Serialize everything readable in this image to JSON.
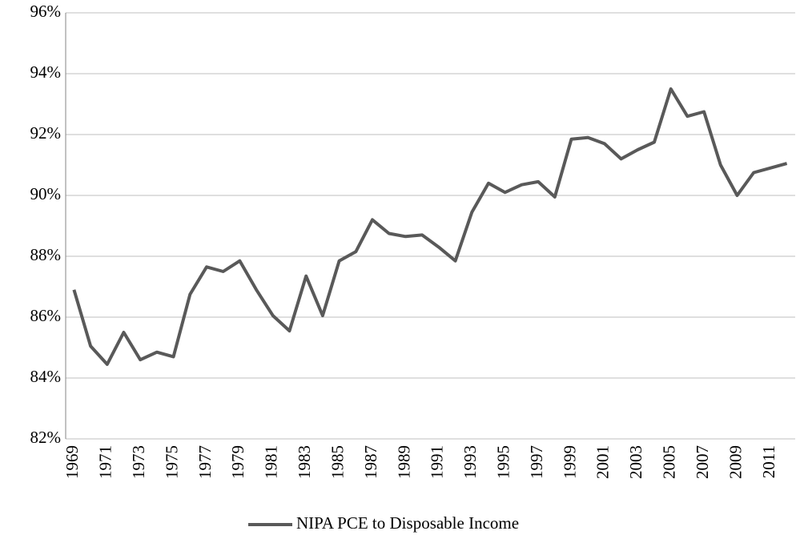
{
  "chart_data": {
    "type": "line",
    "categories": [
      "1969",
      null,
      "1971",
      null,
      "1973",
      null,
      "1975",
      null,
      "1977",
      null,
      "1979",
      null,
      "1981",
      null,
      "1983",
      null,
      "1985",
      null,
      "1987",
      null,
      "1989",
      null,
      "1991",
      null,
      "1993",
      null,
      "1995",
      null,
      "1997",
      null,
      "1999",
      null,
      "2001",
      null,
      "2003",
      null,
      "2005",
      null,
      "2007",
      null,
      "2009",
      null,
      "2011",
      null
    ],
    "series": [
      {
        "name": "NIPA PCE to Disposable Income",
        "color": "#595959",
        "values": [
          86.9,
          85.05,
          84.45,
          85.5,
          84.6,
          84.85,
          84.7,
          86.75,
          87.65,
          87.5,
          87.85,
          86.9,
          86.05,
          85.55,
          87.35,
          86.05,
          87.85,
          88.15,
          89.2,
          88.75,
          88.65,
          88.7,
          88.3,
          87.85,
          89.45,
          90.4,
          90.1,
          90.35,
          90.45,
          89.95,
          91.85,
          91.9,
          91.7,
          91.2,
          91.5,
          91.75,
          93.5,
          92.6,
          92.75,
          91.0,
          90.0,
          90.75,
          90.9,
          91.05
        ]
      }
    ],
    "ylim": [
      82,
      96
    ],
    "yticks": [
      {
        "value": 82,
        "label": "82%"
      },
      {
        "value": 84,
        "label": "84%"
      },
      {
        "value": 86,
        "label": "86%"
      },
      {
        "value": 88,
        "label": "88%"
      },
      {
        "value": 90,
        "label": "90%"
      },
      {
        "value": 92,
        "label": "92%"
      },
      {
        "value": 94,
        "label": "94%"
      },
      {
        "value": 96,
        "label": "96%"
      }
    ],
    "grid": true,
    "legend": "bottom"
  }
}
